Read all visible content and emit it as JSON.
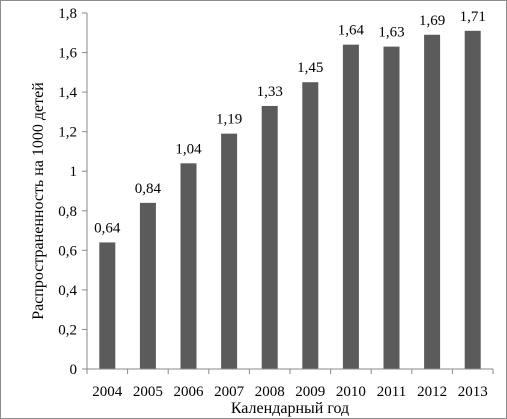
{
  "chart_data": {
    "type": "bar",
    "categories": [
      "2004",
      "2005",
      "2006",
      "2007",
      "2008",
      "2009",
      "2010",
      "2011",
      "2012",
      "2013"
    ],
    "values": [
      0.64,
      0.84,
      1.04,
      1.19,
      1.33,
      1.45,
      1.64,
      1.63,
      1.69,
      1.71
    ],
    "value_labels": [
      "0,64",
      "0,84",
      "1,04",
      "1,19",
      "1,33",
      "1,45",
      "1,64",
      "1,63",
      "1,69",
      "1,71"
    ],
    "title": "",
    "xlabel": "Календарный год",
    "ylabel": "Распространенность на 1000 детей",
    "ylim": [
      0,
      1.8
    ],
    "yticks": [
      0,
      0.2,
      0.4,
      0.6,
      0.8,
      1,
      1.2,
      1.4,
      1.6,
      1.8
    ],
    "ytick_labels": [
      "0",
      "0,2",
      "0,4",
      "0,6",
      "0,8",
      "1",
      "1,2",
      "1,4",
      "1,6",
      "1,8"
    ],
    "grid": false,
    "legend": "none",
    "bar_color": "#5b5b5b"
  }
}
